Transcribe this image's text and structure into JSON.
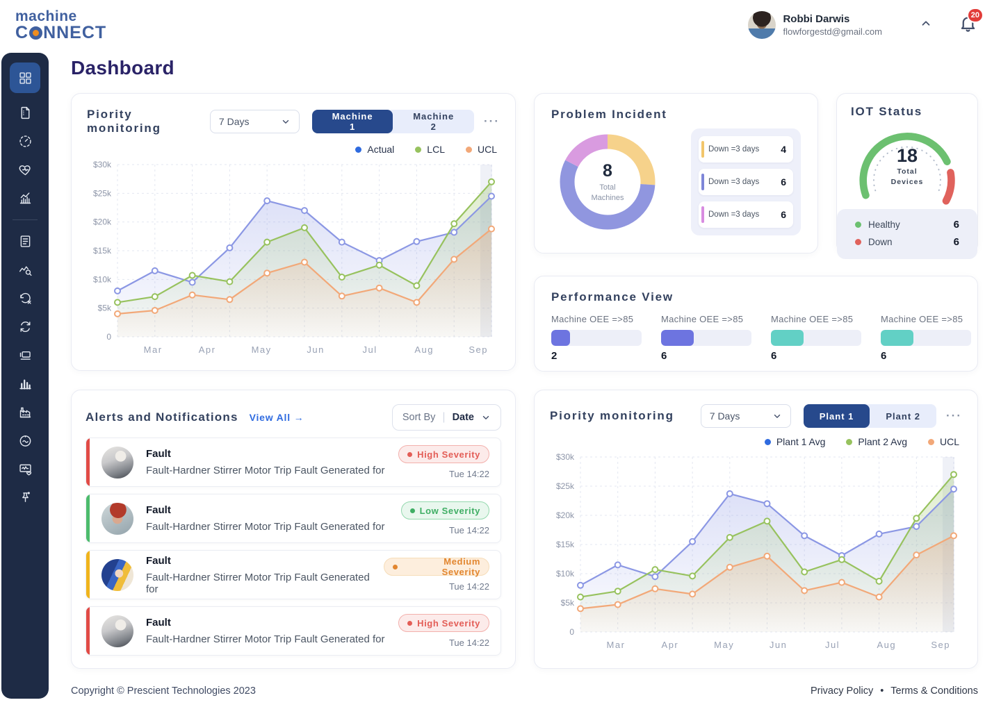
{
  "header": {
    "logo": {
      "line1": "machine",
      "line2_prefix": "C",
      "line2_suffix": "NNECT"
    },
    "user": {
      "name": "Robbi Darwis",
      "email": "flowforgestd@gmail.com"
    },
    "notification_badge": "20"
  },
  "page": {
    "title": "Dashboard"
  },
  "sidebar": {
    "items": [
      {
        "name": "dashboard",
        "icon": "grid-icon",
        "active": true
      },
      {
        "name": "documents",
        "icon": "document-icon",
        "active": false
      },
      {
        "name": "gauge",
        "icon": "gauge-icon",
        "active": false
      },
      {
        "name": "machine-health",
        "icon": "health-icon",
        "active": false
      },
      {
        "name": "trends",
        "icon": "trend-icon",
        "active": false
      },
      {
        "name": "reports",
        "icon": "report-icon",
        "active": false
      },
      {
        "name": "analytics-search",
        "icon": "analytics-icon",
        "active": false
      },
      {
        "name": "downtime-history",
        "icon": "history-icon",
        "active": false
      },
      {
        "name": "sync",
        "icon": "sync-icon",
        "active": false
      },
      {
        "name": "devices",
        "icon": "device-icon",
        "active": false
      },
      {
        "name": "statistics",
        "icon": "bar-chart-icon",
        "active": false
      },
      {
        "name": "factory",
        "icon": "factory-icon",
        "active": false
      },
      {
        "name": "speedometer",
        "icon": "speedometer-icon",
        "active": false
      },
      {
        "name": "monitor-health",
        "icon": "monitor-icon",
        "active": false
      },
      {
        "name": "pinned",
        "icon": "pin-icon",
        "active": false
      }
    ],
    "divider_after_index": 4
  },
  "cards": {
    "priority1": {
      "title": "Piority monitoring",
      "period": "7 Days",
      "tabs": [
        {
          "label": "Machine 1",
          "active": true
        },
        {
          "label": "Machine 2",
          "active": false
        }
      ],
      "menu": "···",
      "legend": [
        {
          "label": "Actual",
          "color": "#2f6bdf"
        },
        {
          "label": "LCL",
          "color": "#97c25e"
        },
        {
          "label": "UCL",
          "color": "#f2a878"
        }
      ]
    },
    "incident": {
      "title": "Problem Incident",
      "total_value": "8",
      "total_label": "Total Machines",
      "rows": [
        {
          "label": "Down =3 days",
          "value": "4",
          "color": "#f2c66b"
        },
        {
          "label": "Down =3 days",
          "value": "6",
          "color": "#7e86d8"
        },
        {
          "label": "Down =3 days",
          "value": "6",
          "color": "#d88ce0"
        }
      ]
    },
    "iot": {
      "title": "IOT Status",
      "total_value": "18",
      "total_label_line1": "Total",
      "total_label_line2": "Devices",
      "stats": [
        {
          "label": "Healthy",
          "value": "6",
          "color": "#6cc070"
        },
        {
          "label": "Down",
          "value": "6",
          "color": "#e0625c"
        }
      ]
    },
    "performance": {
      "title": "Performance View",
      "bars": [
        {
          "label": "Machine OEE =>85",
          "value": "2",
          "pct": 21,
          "color": "#6d74e0"
        },
        {
          "label": "Machine OEE =>85",
          "value": "6",
          "pct": 36,
          "color": "#6d74e0"
        },
        {
          "label": "Machine OEE =>85",
          "value": "6",
          "pct": 36,
          "color": "#62d0c5"
        },
        {
          "label": "Machine OEE =>85",
          "value": "6",
          "pct": 36,
          "color": "#62d0c5"
        }
      ]
    },
    "alerts": {
      "title": "Alerts and Notifications",
      "view_all": "View All →",
      "sort_label": "Sort By",
      "sort_separator": "|",
      "sort_value": "Date",
      "items": [
        {
          "title": "Fault",
          "description": "Fault-Hardner Stirrer Motor Trip Fault Generated for",
          "severity": "High Severity",
          "level": "high",
          "time": "Tue 14:22",
          "avatar": "car",
          "accent": "#e14b46"
        },
        {
          "title": "Fault",
          "description": "Fault-Hardner Stirrer Motor Trip Fault Generated for",
          "severity": "Low Severity",
          "level": "low",
          "time": "Tue 14:22",
          "avatar": "woman",
          "accent": "#4cbb6c"
        },
        {
          "title": "Fault",
          "description": "Fault-Hardner Stirrer Motor Trip Fault Generated for",
          "severity": "Medium  Severity",
          "level": "medium",
          "time": "Tue 14:22",
          "avatar": "illustration",
          "accent": "#f0b41c"
        },
        {
          "title": "Fault",
          "description": "Fault-Hardner Stirrer Motor Trip Fault Generated for",
          "severity": "High Severity",
          "level": "high",
          "time": "Tue 14:22",
          "avatar": "car",
          "accent": "#e14b46"
        }
      ]
    },
    "priority2": {
      "title": "Piority monitoring",
      "period": "7 Days",
      "tabs": [
        {
          "label": "Plant 1",
          "active": true
        },
        {
          "label": "Plant 2",
          "active": false
        }
      ],
      "menu": "···",
      "legend": [
        {
          "label": "Plant 1 Avg",
          "color": "#2f6bdf"
        },
        {
          "label": "Plant 2 Avg",
          "color": "#97c25e"
        },
        {
          "label": "UCL",
          "color": "#f2a878"
        }
      ]
    }
  },
  "footer": {
    "copyright": "Copyright © Prescient Technologies 2023",
    "privacy": "Privacy Policy",
    "separator": "•",
    "terms": "Terms & Conditions"
  },
  "chart_data": [
    {
      "type": "line",
      "title": "Piority monitoring (Machine 1)",
      "x_labels": [
        "Mar",
        "Apr",
        "May",
        "Jun",
        "Jul",
        "Aug",
        "Sep"
      ],
      "y_ticks": [
        "$30k",
        "$25k",
        "$20k",
        "$15k",
        "$10k",
        "$5k",
        "0"
      ],
      "ylim": [
        0,
        30
      ],
      "grid": "dashed",
      "series": [
        {
          "name": "Actual",
          "line": "#8b97e4",
          "values": [
            8,
            11.5,
            9.5,
            15.5,
            23.7,
            22,
            16.5,
            13.3,
            16.6,
            18.2,
            24.5
          ]
        },
        {
          "name": "LCL",
          "line": "#97c25e",
          "values": [
            6,
            7,
            10.7,
            9.6,
            16.5,
            19,
            10.4,
            12.5,
            8.9,
            19.7,
            27
          ]
        },
        {
          "name": "UCL",
          "line": "#f2a878",
          "values": [
            4,
            4.6,
            7.3,
            6.5,
            11.1,
            13,
            7.1,
            8.5,
            6,
            13.5,
            18.8
          ]
        }
      ]
    },
    {
      "type": "line",
      "title": "Piority monitoring (Plant 1)",
      "x_labels": [
        "Mar",
        "Apr",
        "May",
        "Jun",
        "Jul",
        "Aug",
        "Sep"
      ],
      "y_ticks": [
        "$30k",
        "$25k",
        "$20k",
        "$15k",
        "$10k",
        "$5k",
        "0"
      ],
      "ylim": [
        0,
        30
      ],
      "grid": "dashed",
      "series": [
        {
          "name": "Plant 1 Avg",
          "line": "#8b97e4",
          "values": [
            8,
            11.5,
            9.5,
            15.5,
            23.7,
            22,
            16.5,
            13.1,
            16.8,
            18.1,
            24.5
          ]
        },
        {
          "name": "Plant 2 Avg",
          "line": "#97c25e",
          "values": [
            6,
            7,
            10.7,
            9.6,
            16.2,
            19,
            10.3,
            12.4,
            8.7,
            19.5,
            27
          ]
        },
        {
          "name": "UCL",
          "line": "#f2a878",
          "values": [
            4,
            4.7,
            7.4,
            6.5,
            11.1,
            13,
            7.1,
            8.5,
            6,
            13.2,
            16.5
          ]
        }
      ]
    },
    {
      "type": "pie",
      "title": "Problem Incident",
      "center_value": "8",
      "center_label": "Total Machines",
      "slices": [
        {
          "label": "Down =3 days",
          "value": 4,
          "arc": 0.26,
          "color": "#f6d28b"
        },
        {
          "label": "Down =3 days",
          "value": 6,
          "arc": 0.565,
          "color": "#9096df"
        },
        {
          "label": "Down =3 days",
          "value": 6,
          "arc": 0.175,
          "color": "#d99be0"
        }
      ]
    },
    {
      "type": "gauge",
      "title": "IOT Status",
      "total": 18,
      "segments": [
        {
          "label": "Healthy",
          "value": 6,
          "color": "#6cc070"
        },
        {
          "label": "Down",
          "value": 6,
          "color": "#e0625c"
        }
      ]
    }
  ]
}
